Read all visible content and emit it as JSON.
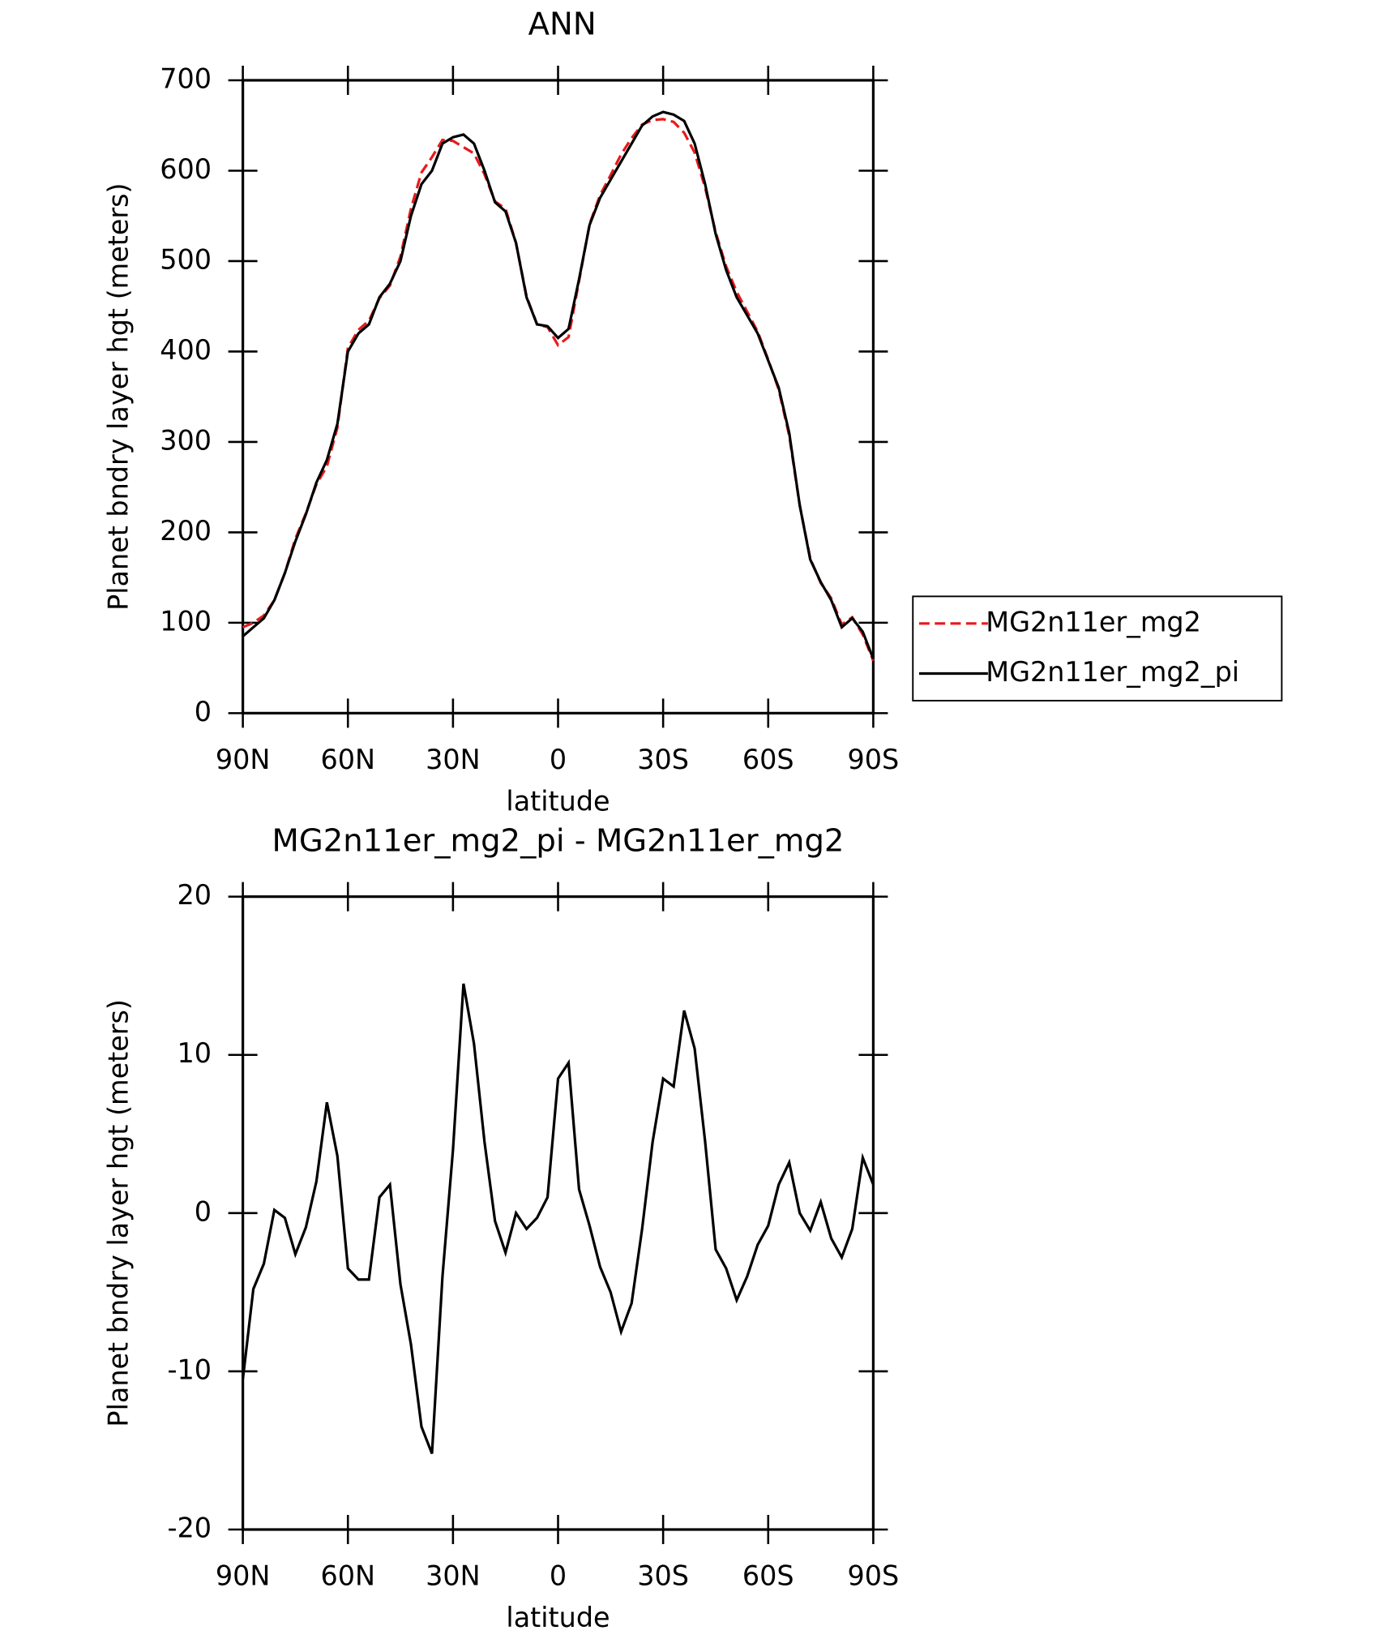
{
  "chart_data": [
    {
      "type": "line",
      "title": "ANN",
      "xlabel": "latitude",
      "ylabel": "Planet bndry layer hgt (meters)",
      "x": [
        90,
        87,
        84,
        81,
        78,
        75,
        72,
        69,
        66,
        63,
        60,
        57,
        54,
        51,
        48,
        45,
        42,
        39,
        36,
        33,
        30,
        27,
        24,
        21,
        18,
        15,
        12,
        9,
        6,
        3,
        0,
        -3,
        -6,
        -9,
        -12,
        -15,
        -18,
        -21,
        -24,
        -27,
        -30,
        -33,
        -36,
        -39,
        -42,
        -45,
        -48,
        -51,
        -54,
        -57,
        -60,
        -63,
        -66,
        -69,
        -72,
        -75,
        -78,
        -81,
        -84,
        -87,
        -90
      ],
      "series": [
        {
          "name": "MG2n11er_mg2",
          "color": "#e8191c",
          "dash": true,
          "values": [
            95,
            100,
            108,
            125,
            155,
            193,
            221,
            253,
            273,
            316,
            404,
            424,
            434,
            459,
            473,
            505,
            558,
            598,
            615,
            634,
            633,
            626,
            619,
            596,
            566,
            558,
            520,
            461,
            430,
            427,
            407,
            416,
            478,
            541,
            573,
            595,
            618,
            636,
            651,
            656,
            657,
            654,
            642,
            620,
            581,
            532,
            494,
            466,
            444,
            422,
            391,
            358,
            307,
            230,
            171,
            144,
            127,
            98,
            106,
            87,
            58
          ]
        },
        {
          "name": "MG2n11er_mg2_pi",
          "color": "#000000",
          "dash": false,
          "values": [
            85,
            95,
            105,
            125,
            155,
            190,
            220,
            255,
            280,
            320,
            400,
            420,
            430,
            460,
            475,
            500,
            550,
            585,
            600,
            630,
            637,
            640,
            630,
            600,
            565,
            555,
            520,
            460,
            430,
            428,
            415,
            425,
            480,
            540,
            570,
            590,
            610,
            630,
            650,
            660,
            665,
            662,
            655,
            630,
            585,
            530,
            490,
            460,
            440,
            420,
            390,
            360,
            310,
            230,
            170,
            145,
            125,
            95,
            105,
            90,
            60
          ]
        }
      ],
      "xlim": [
        90,
        -90
      ],
      "xticks": [
        {
          "value": 90,
          "label": "90N"
        },
        {
          "value": 60,
          "label": "60N"
        },
        {
          "value": 30,
          "label": "30N"
        },
        0,
        {
          "value": -30,
          "label": "30S"
        },
        {
          "value": -60,
          "label": "60S"
        },
        {
          "value": -90,
          "label": "90S"
        }
      ],
      "ylim": [
        0,
        700
      ],
      "yticks": [
        0,
        100,
        200,
        300,
        400,
        500,
        600,
        700
      ],
      "legend": "right"
    },
    {
      "type": "line",
      "title": "MG2n11er_mg2_pi - MG2n11er_mg2",
      "xlabel": "latitude",
      "ylabel": "Planet bndry layer hgt (meters)",
      "x": [
        90,
        87,
        84,
        81,
        78,
        75,
        72,
        69,
        66,
        63,
        60,
        57,
        54,
        51,
        48,
        45,
        42,
        39,
        36,
        33,
        30,
        27,
        24,
        21,
        18,
        15,
        12,
        9,
        6,
        3,
        0,
        -3,
        -6,
        -9,
        -12,
        -15,
        -18,
        -21,
        -24,
        -27,
        -30,
        -33,
        -36,
        -39,
        -42,
        -45,
        -48,
        -51,
        -54,
        -57,
        -60,
        -63,
        -66,
        -69,
        -72,
        -75,
        -78,
        -81,
        -84,
        -87,
        -90
      ],
      "series": [
        {
          "color": "#000000",
          "dash": false,
          "values": [
            -10.5,
            -4.8,
            -3.2,
            0.2,
            -0.3,
            -2.6,
            -0.9,
            2,
            7,
            3.6,
            -3.5,
            -4.2,
            -4.2,
            1,
            1.8,
            -4.5,
            -8.3,
            -13.5,
            -15.2,
            -4,
            4,
            14.5,
            10.7,
            4.5,
            -0.5,
            -2.5,
            0,
            -1,
            -0.3,
            1,
            8.5,
            9.5,
            1.5,
            -0.8,
            -3.4,
            -5,
            -7.5,
            -5.7,
            -1,
            4.5,
            8.5,
            8,
            12.8,
            10.4,
            4.5,
            -2.3,
            -3.5,
            -5.5,
            -4,
            -2,
            -0.8,
            1.8,
            3.2,
            0,
            -1.1,
            0.7,
            -1.6,
            -2.8,
            -1,
            3.5,
            1.8
          ]
        }
      ],
      "xlim": [
        90,
        -90
      ],
      "xticks": [
        {
          "value": 90,
          "label": "90N"
        },
        {
          "value": 60,
          "label": "60N"
        },
        {
          "value": 30,
          "label": "30N"
        },
        0,
        {
          "value": -30,
          "label": "30S"
        },
        {
          "value": -60,
          "label": "60S"
        },
        {
          "value": -90,
          "label": "90S"
        }
      ],
      "ylim": [
        -20,
        20
      ],
      "yticks": [
        -20,
        -10,
        0,
        10,
        20
      ]
    }
  ]
}
